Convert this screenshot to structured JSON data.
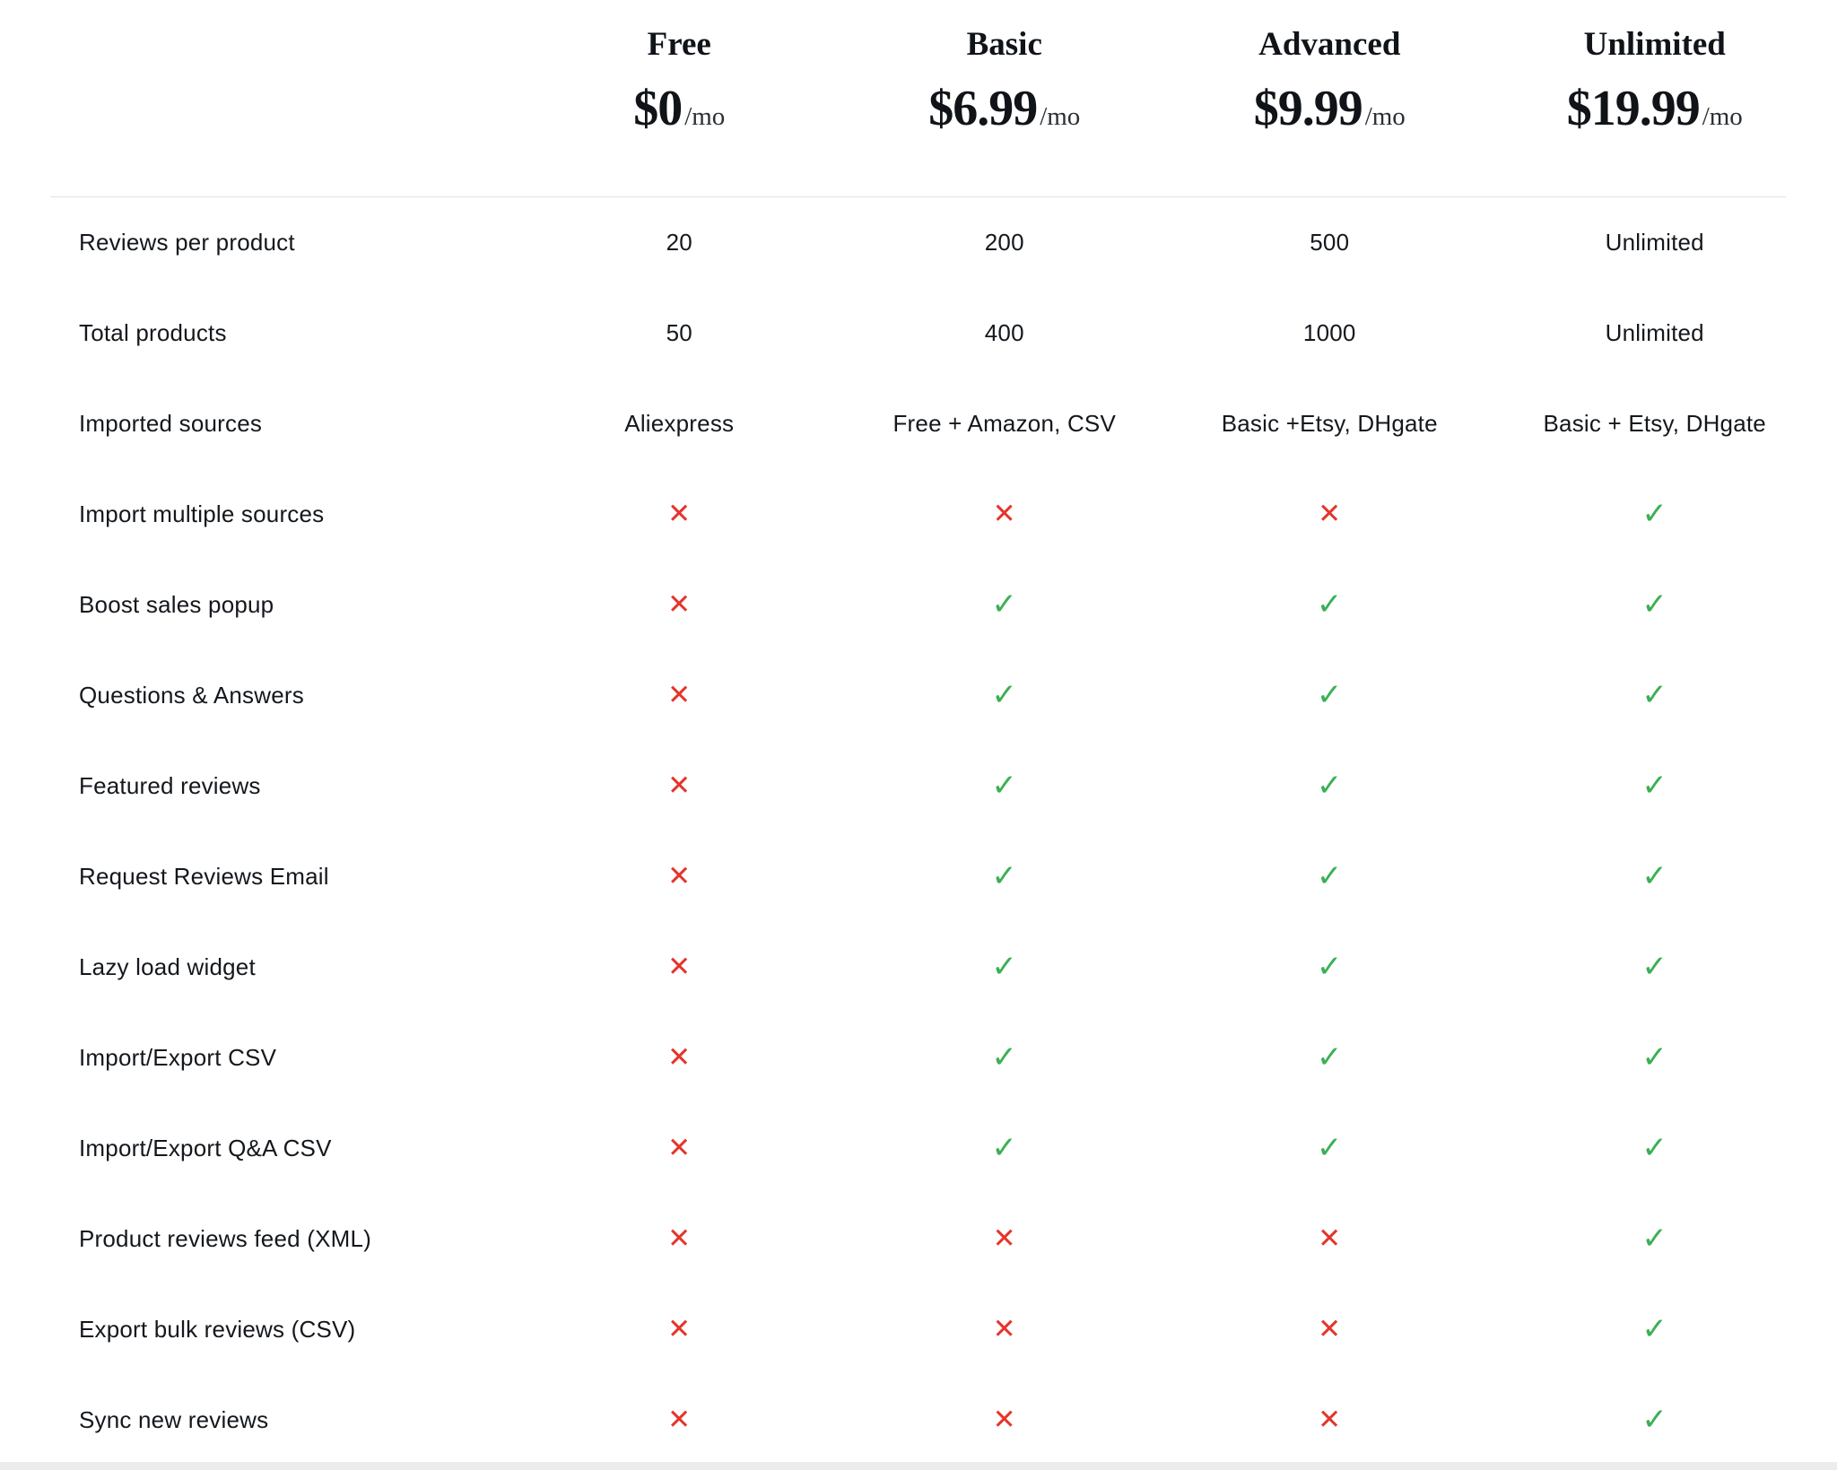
{
  "plans": [
    {
      "name": "Free",
      "price": "$0",
      "period": "/mo"
    },
    {
      "name": "Basic",
      "price": "$6.99",
      "period": "/mo"
    },
    {
      "name": "Advanced",
      "price": "$9.99",
      "period": "/mo"
    },
    {
      "name": "Unlimited",
      "price": "$19.99",
      "period": "/mo"
    }
  ],
  "features": [
    {
      "label": "Reviews per product",
      "values": [
        "20",
        "200",
        "500",
        "Unlimited"
      ]
    },
    {
      "label": "Total products",
      "values": [
        "50",
        "400",
        "1000",
        "Unlimited"
      ]
    },
    {
      "label": "Imported sources",
      "values": [
        "Aliexpress",
        "Free + Amazon, CSV",
        "Basic +Etsy, DHgate",
        "Basic + Etsy, DHgate"
      ]
    },
    {
      "label": "Import multiple sources",
      "values": [
        "no",
        "no",
        "no",
        "yes"
      ]
    },
    {
      "label": "Boost sales popup",
      "values": [
        "no",
        "yes",
        "yes",
        "yes"
      ]
    },
    {
      "label": "Questions & Answers",
      "values": [
        "no",
        "yes",
        "yes",
        "yes"
      ]
    },
    {
      "label": "Featured reviews",
      "values": [
        "no",
        "yes",
        "yes",
        "yes"
      ]
    },
    {
      "label": "Request Reviews Email",
      "values": [
        "no",
        "yes",
        "yes",
        "yes"
      ]
    },
    {
      "label": "Lazy load widget",
      "values": [
        "no",
        "yes",
        "yes",
        "yes"
      ]
    },
    {
      "label": "Import/Export CSV",
      "values": [
        "no",
        "yes",
        "yes",
        "yes"
      ]
    },
    {
      "label": "Import/Export Q&A CSV",
      "values": [
        "no",
        "yes",
        "yes",
        "yes"
      ]
    },
    {
      "label": "Product reviews feed (XML)",
      "values": [
        "no",
        "no",
        "no",
        "yes"
      ]
    },
    {
      "label": "Export bulk reviews (CSV)",
      "values": [
        "no",
        "no",
        "no",
        "yes"
      ]
    },
    {
      "label": "Sync new reviews",
      "values": [
        "no",
        "no",
        "no",
        "yes"
      ]
    }
  ],
  "icons": {
    "yes": "✓",
    "no": "✕"
  },
  "colors": {
    "yes": "#3bb054",
    "no": "#e5352b",
    "text": "#1d2025",
    "divider": "#e2e2e2"
  }
}
